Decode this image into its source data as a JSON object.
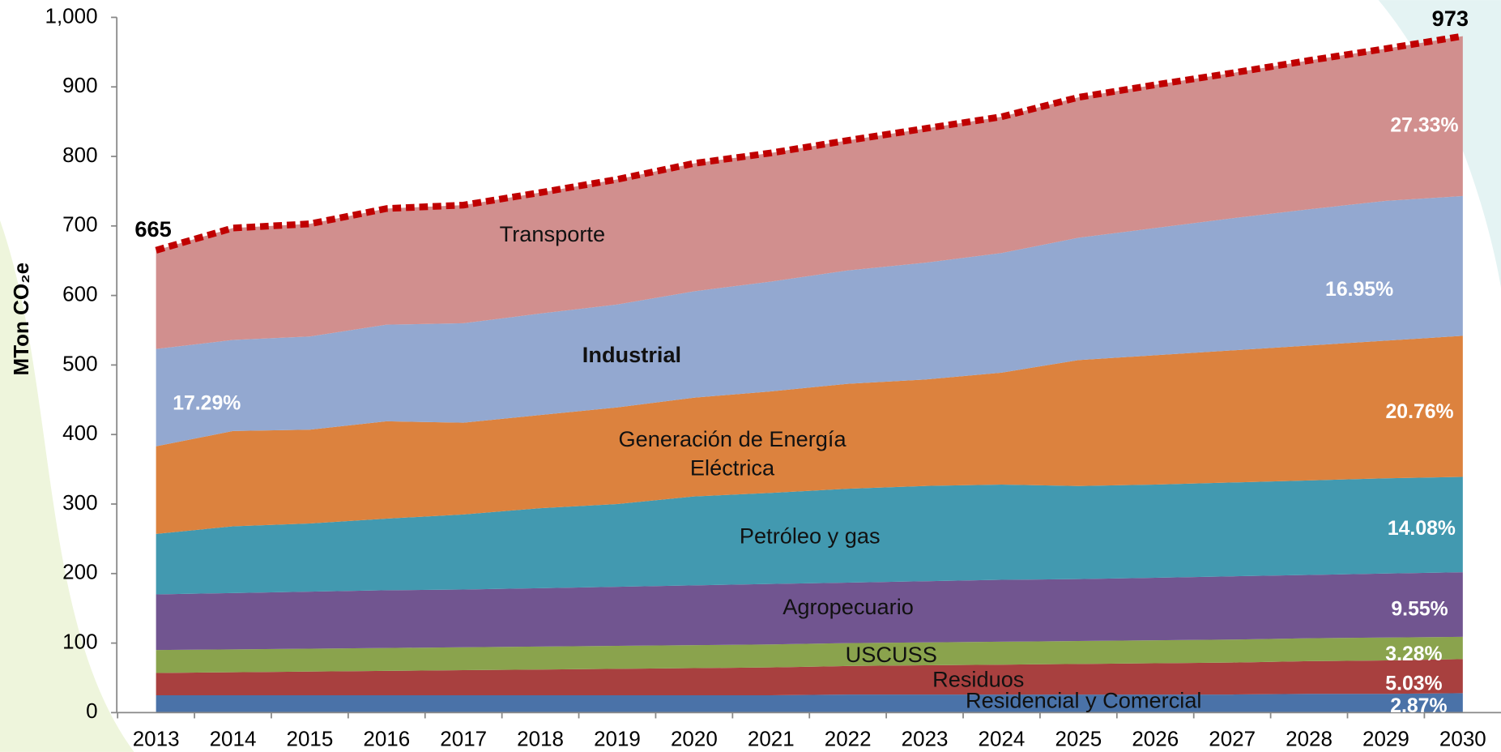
{
  "chart_data": {
    "type": "stacked_area",
    "ylabel": "MTon CO₂e",
    "categories": [
      "2013",
      "2014",
      "2015",
      "2016",
      "2017",
      "2018",
      "2019",
      "2020",
      "2021",
      "2022",
      "2023",
      "2024",
      "2025",
      "2026",
      "2027",
      "2028",
      "2029",
      "2030"
    ],
    "ylim": [
      0,
      1000
    ],
    "yticks": [
      0,
      100,
      200,
      300,
      400,
      500,
      600,
      700,
      800,
      900,
      {
        "value": 1000,
        "label": "1,000"
      }
    ],
    "series": [
      {
        "name": "Residencial y Comercial",
        "color": "#4a72a8",
        "values": [
          25,
          25,
          25,
          25,
          25,
          25,
          25,
          25,
          25,
          26,
          26,
          26,
          26,
          26,
          26,
          27,
          27,
          28
        ]
      },
      {
        "name": "Residuos",
        "color": "#a8403f",
        "values": [
          32,
          33,
          34,
          35,
          36,
          37,
          38,
          39,
          40,
          41,
          42,
          43,
          44,
          45,
          46,
          47,
          48,
          49
        ]
      },
      {
        "name": "USCUSS",
        "color": "#8aa34d",
        "values": [
          33,
          33,
          33,
          33,
          33,
          33,
          33,
          33,
          33,
          33,
          33,
          33,
          33,
          33,
          33,
          33,
          33,
          32
        ]
      },
      {
        "name": "Agropecuario",
        "color": "#715590",
        "values": [
          80,
          81,
          82,
          83,
          83,
          84,
          85,
          86,
          87,
          87,
          88,
          89,
          89,
          90,
          91,
          91,
          92,
          93
        ]
      },
      {
        "name": "Petróleo y gas",
        "color": "#4299b0",
        "values": [
          87,
          96,
          98,
          103,
          108,
          115,
          119,
          128,
          131,
          135,
          137,
          137,
          134,
          134,
          135,
          136,
          137,
          137
        ]
      },
      {
        "name": "Generación de Energía Eléctrica",
        "color": "#dc823e",
        "values": [
          126,
          137,
          135,
          140,
          132,
          134,
          139,
          142,
          146,
          151,
          153,
          161,
          181,
          186,
          190,
          194,
          198,
          203
        ]
      },
      {
        "name": "Industrial",
        "color": "#93a8d0",
        "values": [
          140,
          131,
          134,
          139,
          143,
          146,
          148,
          153,
          158,
          163,
          168,
          172,
          176,
          183,
          190,
          196,
          201,
          201
        ]
      },
      {
        "name": "Transporte",
        "color": "#d18f8e",
        "values": [
          142,
          161,
          162,
          167,
          170,
          174,
          180,
          184,
          185,
          187,
          193,
          196,
          202,
          206,
          209,
          214,
          219,
          230
        ]
      }
    ],
    "total": {
      "color": "#c00000",
      "values": [
        665,
        697,
        703,
        725,
        730,
        748,
        767,
        790,
        805,
        823,
        840,
        857,
        885,
        903,
        920,
        938,
        955,
        973
      ]
    },
    "annotations": [
      "17.29%",
      "16.95%",
      "27.33%",
      "20.76%",
      "14.08%",
      "9.55%",
      "3.28%",
      "5.03%",
      "2.87%"
    ]
  }
}
